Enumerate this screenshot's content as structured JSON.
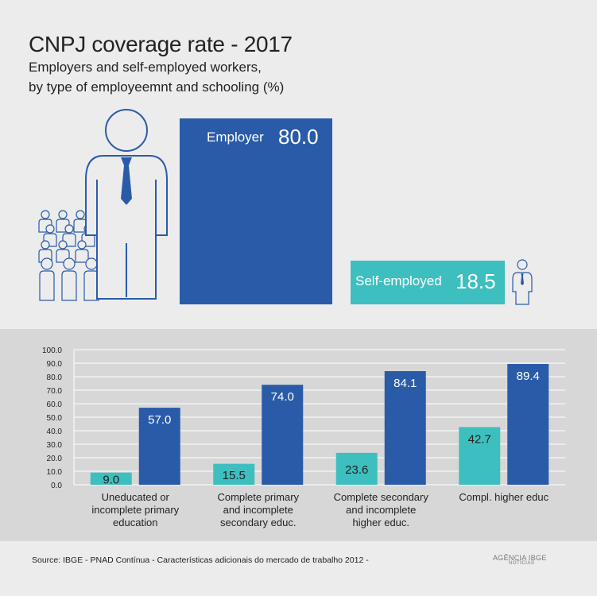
{
  "title": "CNPJ coverage rate - 2017",
  "subtitle": [
    "Employers and self-employed workers,",
    "by type of employeemnt and schooling (%)"
  ],
  "highlights": {
    "employer": {
      "label": "Employer",
      "value": "80.0"
    },
    "self_employed": {
      "label": "Self-employed",
      "value": "18.5"
    }
  },
  "colors": {
    "employer": "#2a5ba8",
    "self_employed": "#3ebfbf",
    "icon_stroke": "#2a5ba8",
    "background": "#ececec",
    "chart_background": "#d7d7d7"
  },
  "icons": [
    "employer-person-icon",
    "crowd-icon",
    "self-employed-person-icon",
    "agencia-ibge-logo"
  ],
  "chart_data": {
    "type": "bar",
    "categories": [
      [
        "Uneducated or",
        "incomplete primary",
        "education"
      ],
      [
        "Complete primary",
        "and incomplete",
        "secondary educ."
      ],
      [
        "Complete secondary",
        "and incomplete",
        "higher educ."
      ],
      [
        "Compl. higher educ"
      ]
    ],
    "series": [
      {
        "color": "#3ebfbf",
        "values": [
          9.0,
          15.5,
          23.6,
          42.7
        ],
        "labels": [
          "9.0",
          "15.5",
          "23.6",
          "42.7"
        ]
      },
      {
        "color": "#2a5ba8",
        "values": [
          57.0,
          74.0,
          84.1,
          89.4
        ],
        "labels": [
          "57.0",
          "74.0",
          "84.1",
          "89.4"
        ]
      }
    ],
    "yticks": [
      "0.0",
      "10.0",
      "20.0",
      "30.0",
      "40.0",
      "50.0",
      "60.0",
      "70.0",
      "80.0",
      "90.0",
      "100.0"
    ],
    "ylim": [
      0,
      100
    ],
    "grid": true
  },
  "source": "Source: IBGE - PNAD Contínua - Características adicionais do mercado de trabalho 2012 -",
  "logo": {
    "main": "AGÊNCIA IBGE",
    "sub": "NOTÍCIAS"
  }
}
